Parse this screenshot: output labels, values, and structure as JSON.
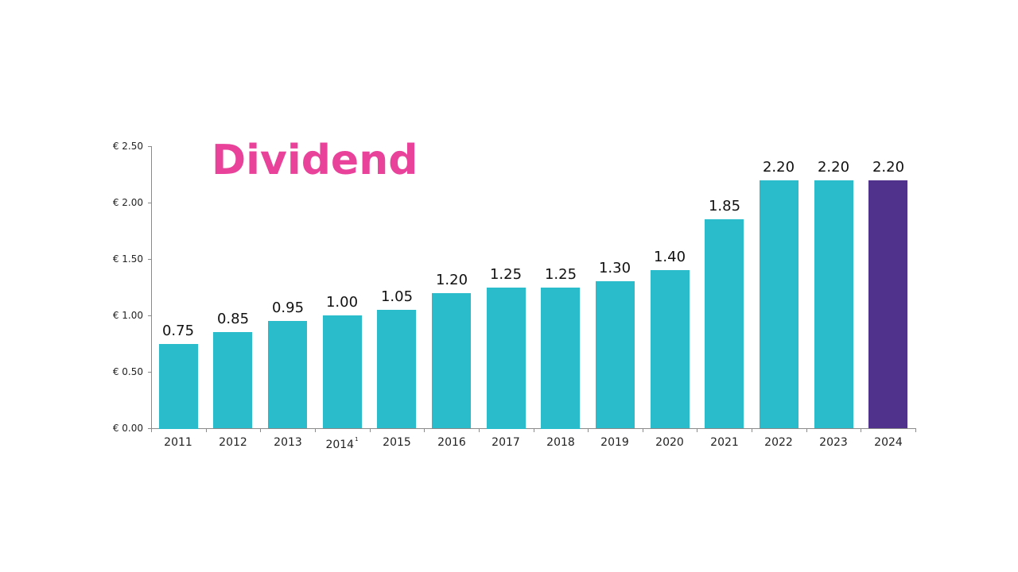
{
  "chart_data": {
    "type": "bar",
    "title": "Dividend",
    "xlabel": "",
    "ylabel": "",
    "categories": [
      "2011",
      "2012",
      "2013",
      "2014",
      "2015",
      "2016",
      "2017",
      "2018",
      "2019",
      "2020",
      "2021",
      "2022",
      "2023",
      "2024"
    ],
    "values": [
      0.75,
      0.85,
      0.95,
      1.0,
      1.05,
      1.2,
      1.25,
      1.25,
      1.3,
      1.4,
      1.85,
      2.2,
      2.2,
      2.2
    ],
    "value_labels": [
      "0.75",
      "0.85",
      "0.95",
      "1.00",
      "1.05",
      "1.20",
      "1.25",
      "1.25",
      "1.30",
      "1.40",
      "1.85",
      "2.20",
      "2.20",
      "2.20"
    ],
    "footnotes": {
      "2014": "1"
    },
    "ylim": [
      0,
      2.5
    ],
    "yticks": [
      0,
      0.5,
      1.0,
      1.5,
      2.0,
      2.5
    ],
    "ytick_labels": [
      "€ 0.00",
      "€ 0.50",
      "€ 1.00",
      "€ 1.50",
      "€ 2.00",
      "€ 2.50"
    ],
    "grid": false,
    "legend": null,
    "colors": {
      "default": "#2bbccc",
      "highlight": "#50328c",
      "title": "#e8429a"
    },
    "highlight_index": 13
  }
}
